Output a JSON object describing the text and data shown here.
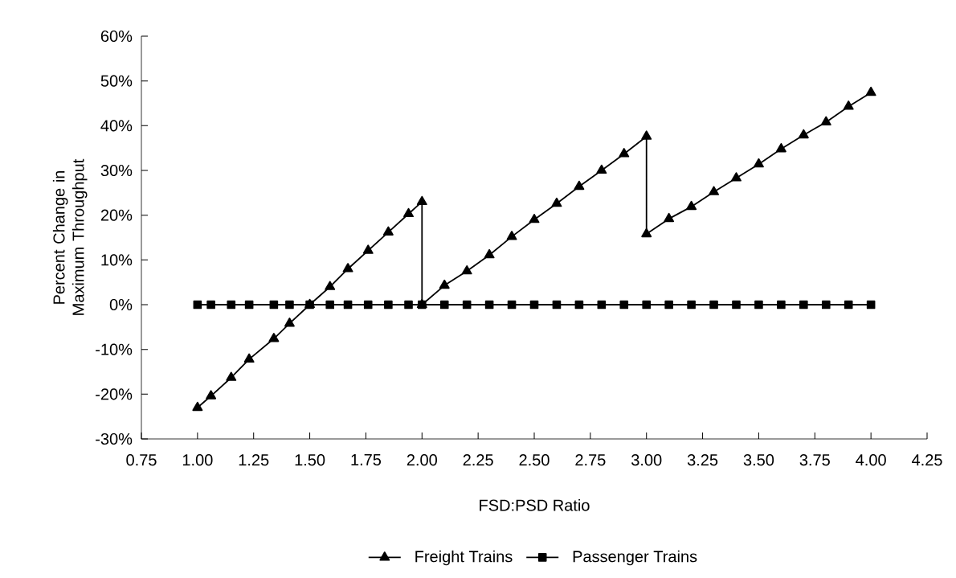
{
  "chart_data": {
    "type": "line",
    "xlabel": "FSD:PSD Ratio",
    "ylabel": "Percent Change in Maximum Throughput",
    "xlim": [
      0.75,
      4.25
    ],
    "ylim": [
      -30,
      60
    ],
    "xticks": [
      {
        "value": 0.75,
        "label": "0.75"
      },
      {
        "value": 1,
        "label": "1.00"
      },
      {
        "value": 1.25,
        "label": "1.25"
      },
      {
        "value": 1.5,
        "label": "1.50"
      },
      {
        "value": 1.75,
        "label": "1.75"
      },
      {
        "value": 2,
        "label": "2.00"
      },
      {
        "value": 2.25,
        "label": "2.25"
      },
      {
        "value": 2.5,
        "label": "2.50"
      },
      {
        "value": 2.75,
        "label": "2.75"
      },
      {
        "value": 3,
        "label": "3.00"
      },
      {
        "value": 3.25,
        "label": "3.25"
      },
      {
        "value": 3.5,
        "label": "3.50"
      },
      {
        "value": 3.75,
        "label": "3.75"
      },
      {
        "value": 4,
        "label": "4.00"
      },
      {
        "value": 4.25,
        "label": "4.25"
      }
    ],
    "yticks": [
      {
        "value": -30,
        "label": "-30%"
      },
      {
        "value": -20,
        "label": "-20%"
      },
      {
        "value": -10,
        "label": "-10%"
      },
      {
        "value": 0,
        "label": "0%"
      },
      {
        "value": 10,
        "label": "10%"
      },
      {
        "value": 20,
        "label": "20%"
      },
      {
        "value": 30,
        "label": "30%"
      },
      {
        "value": 40,
        "label": "40%"
      },
      {
        "value": 50,
        "label": "50%"
      },
      {
        "value": 60,
        "label": "60%"
      }
    ],
    "legend": "bottom",
    "series": [
      {
        "name": "Freight Trains",
        "color": "#000000",
        "marker": "triangle",
        "x": [
          1.0,
          1.06,
          1.15,
          1.23,
          1.34,
          1.41,
          1.5,
          1.59,
          1.67,
          1.76,
          1.85,
          1.94,
          2.0,
          2.0,
          2.1,
          2.2,
          2.3,
          2.4,
          2.5,
          2.6,
          2.7,
          2.8,
          2.9,
          3.0,
          3.0,
          3.1,
          3.2,
          3.3,
          3.4,
          3.5,
          3.6,
          3.7,
          3.8,
          3.9,
          4.0
        ],
        "values": [
          -23.0,
          -20.4,
          -16.3,
          -12.2,
          -7.6,
          -4.2,
          0,
          4.0,
          8.0,
          12.1,
          16.2,
          20.3,
          23.0,
          0,
          4.3,
          7.5,
          11.1,
          15.2,
          19.0,
          22.6,
          26.4,
          30.0,
          33.7,
          37.6,
          15.8,
          19.2,
          21.9,
          25.2,
          28.3,
          31.4,
          34.8,
          37.9,
          40.8,
          44.3,
          47.4
        ]
      },
      {
        "name": "Passenger Trains",
        "color": "#000000",
        "marker": "square",
        "x": [
          1.0,
          1.06,
          1.15,
          1.23,
          1.34,
          1.41,
          1.5,
          1.59,
          1.67,
          1.76,
          1.85,
          1.94,
          2.0,
          2.1,
          2.2,
          2.3,
          2.4,
          2.5,
          2.6,
          2.7,
          2.8,
          2.9,
          3.0,
          3.1,
          3.2,
          3.3,
          3.4,
          3.5,
          3.6,
          3.7,
          3.8,
          3.9,
          4.0
        ],
        "values": [
          0,
          0,
          0,
          0,
          0,
          0,
          0,
          0,
          0,
          0,
          0,
          0,
          0,
          0,
          0,
          0,
          0,
          0,
          0,
          0,
          0,
          0,
          0,
          0,
          0,
          0,
          0,
          0,
          0,
          0,
          0,
          0,
          0
        ]
      }
    ]
  }
}
